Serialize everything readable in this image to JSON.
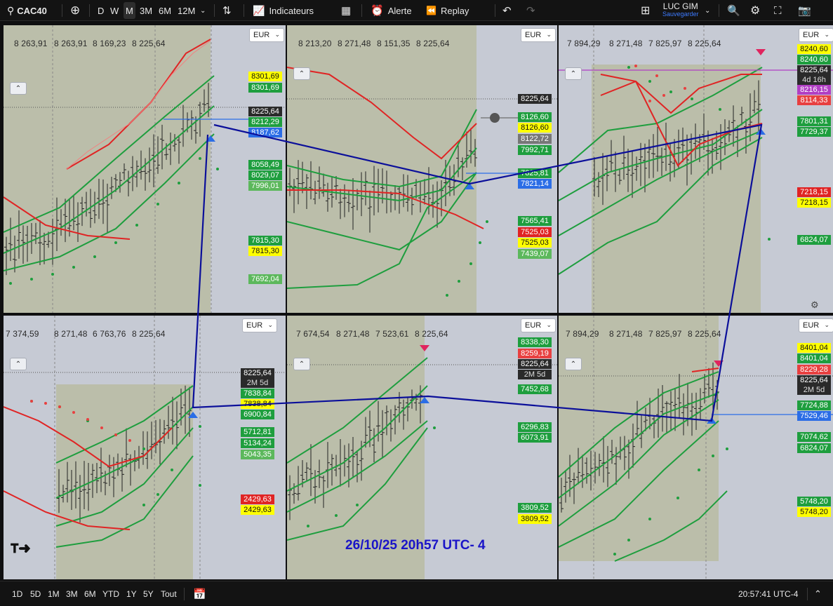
{
  "toolbar": {
    "symbol": "CAC40",
    "intervals": [
      "D",
      "W",
      "M",
      "3M",
      "6M",
      "12M"
    ],
    "active_interval": "M",
    "indicators_label": "Indicateurs",
    "alert_label": "Alerte",
    "replay_label": "Replay",
    "user_name": "LUC GIM",
    "save_label": "Sauvegarder"
  },
  "bottombar": {
    "ranges": [
      "1D",
      "5D",
      "1M",
      "3M",
      "6M",
      "YTD",
      "1Y",
      "5Y",
      "Tout"
    ],
    "clock": "20:57:41 UTC-4"
  },
  "currency": "EUR",
  "watermark": "26/10/25 20h57 UTC- 4",
  "colors": {
    "band": "#1e9e3e",
    "bear": "#e02424",
    "drawing": "#0b0f9a",
    "bg": "#c6cad4"
  },
  "panes": [
    {
      "id": "p1",
      "ohlc": [
        "8 263,91",
        "8 263,91",
        "8 169,23",
        "8 225,64"
      ],
      "labels": [
        {
          "text": "8301,69",
          "bg": "#ffff00",
          "fg": "#111"
        },
        {
          "text": "8301,69",
          "bg": "#1e9e3e",
          "fg": "#fff"
        },
        {
          "text": "8225,64",
          "bg": "#2a2a2a",
          "fg": "#fff"
        },
        {
          "text": "8212,29",
          "bg": "#1e9e3e",
          "fg": "#fff"
        },
        {
          "text": "8187,62",
          "bg": "#2b6de6",
          "fg": "#fff"
        },
        {
          "text": "8058,49",
          "bg": "#1e9e3e",
          "fg": "#fff"
        },
        {
          "text": "8029,07",
          "bg": "#1e9e3e",
          "fg": "#fff"
        },
        {
          "text": "7996,01",
          "bg": "#5cb85c",
          "fg": "#fff"
        },
        {
          "text": "7815,30",
          "bg": "#1e9e3e",
          "fg": "#fff"
        },
        {
          "text": "7815,30",
          "bg": "#ffff00",
          "fg": "#111"
        },
        {
          "text": "7692,04",
          "bg": "#5cb85c",
          "fg": "#fff"
        }
      ]
    },
    {
      "id": "p2",
      "ohlc": [
        "8 213,20",
        "8 271,48",
        "8 151,35",
        "8 225,64"
      ],
      "labels": [
        {
          "text": "8225,64",
          "bg": "#2a2a2a",
          "fg": "#fff"
        },
        {
          "text": "8126,60",
          "bg": "#1e9e3e",
          "fg": "#fff"
        },
        {
          "text": "8126,60",
          "bg": "#ffff00",
          "fg": "#111"
        },
        {
          "text": "8122,72",
          "bg": "#777",
          "fg": "#fff"
        },
        {
          "text": "7992,71",
          "bg": "#1e9e3e",
          "fg": "#fff"
        },
        {
          "text": "7825,81",
          "bg": "#1e9e3e",
          "fg": "#fff"
        },
        {
          "text": "7821,14",
          "bg": "#2b6de6",
          "fg": "#fff"
        },
        {
          "text": "7565,41",
          "bg": "#1e9e3e",
          "fg": "#fff"
        },
        {
          "text": "7525,03",
          "bg": "#e02424",
          "fg": "#fff"
        },
        {
          "text": "7525,03",
          "bg": "#ffff00",
          "fg": "#111"
        },
        {
          "text": "7439,07",
          "bg": "#5cb85c",
          "fg": "#fff"
        }
      ]
    },
    {
      "id": "p3",
      "ohlc": [
        "7 894,29",
        "8 271,48",
        "7 825,97",
        "8 225,64"
      ],
      "labels": [
        {
          "text": "8240,60",
          "bg": "#ffff00",
          "fg": "#111"
        },
        {
          "text": "8240,60",
          "bg": "#1e9e3e",
          "fg": "#fff"
        },
        {
          "text": "8225,64",
          "bg": "#2a2a2a",
          "fg": "#fff"
        },
        {
          "text": "4d 16h",
          "bg": "#2a2a2a",
          "fg": "#ddd"
        },
        {
          "text": "8216,15",
          "bg": "#b13fc4",
          "fg": "#fff"
        },
        {
          "text": "8114,33",
          "bg": "#e84040",
          "fg": "#fff"
        },
        {
          "text": "7801,31",
          "bg": "#1e9e3e",
          "fg": "#fff"
        },
        {
          "text": "7729,37",
          "bg": "#1e9e3e",
          "fg": "#fff"
        },
        {
          "text": "7218,15",
          "bg": "#e02424",
          "fg": "#fff"
        },
        {
          "text": "7218,15",
          "bg": "#ffff00",
          "fg": "#111"
        },
        {
          "text": "6824,07",
          "bg": "#1e9e3e",
          "fg": "#fff"
        }
      ]
    },
    {
      "id": "p4",
      "ohlc": [
        "7 374,59",
        "8 271,48",
        "6 763,76",
        "8 225,64"
      ],
      "labels": [
        {
          "text": "8225,64",
          "bg": "#2a2a2a",
          "fg": "#fff"
        },
        {
          "text": "2M 5d",
          "bg": "#2a2a2a",
          "fg": "#ddd"
        },
        {
          "text": "7838,84",
          "bg": "#1e9e3e",
          "fg": "#fff"
        },
        {
          "text": "7838,84",
          "bg": "#ffff00",
          "fg": "#111"
        },
        {
          "text": "6900,84",
          "bg": "#1e9e3e",
          "fg": "#fff"
        },
        {
          "text": "5712,81",
          "bg": "#1e9e3e",
          "fg": "#fff"
        },
        {
          "text": "5134,24",
          "bg": "#1e9e3e",
          "fg": "#fff"
        },
        {
          "text": "5043,35",
          "bg": "#5cb85c",
          "fg": "#fff"
        },
        {
          "text": "2429,63",
          "bg": "#e02424",
          "fg": "#fff"
        },
        {
          "text": "2429,63",
          "bg": "#ffff00",
          "fg": "#111"
        }
      ]
    },
    {
      "id": "p5",
      "ohlc": [
        "7 674,54",
        "8 271,48",
        "7 523,61",
        "8 225,64"
      ],
      "labels": [
        {
          "text": "8338,30",
          "bg": "#1e9e3e",
          "fg": "#fff"
        },
        {
          "text": "8259,19",
          "bg": "#e84040",
          "fg": "#fff"
        },
        {
          "text": "8225,64",
          "bg": "#2a2a2a",
          "fg": "#fff"
        },
        {
          "text": "2M 5d",
          "bg": "#2a2a2a",
          "fg": "#ddd"
        },
        {
          "text": "7452,68",
          "bg": "#1e9e3e",
          "fg": "#fff"
        },
        {
          "text": "6296,83",
          "bg": "#1e9e3e",
          "fg": "#fff"
        },
        {
          "text": "6073,91",
          "bg": "#1e9e3e",
          "fg": "#fff"
        },
        {
          "text": "3809,52",
          "bg": "#1e9e3e",
          "fg": "#fff"
        },
        {
          "text": "3809,52",
          "bg": "#ffff00",
          "fg": "#111"
        }
      ]
    },
    {
      "id": "p6",
      "ohlc": [
        "7 894,29",
        "8 271,48",
        "7 825,97",
        "8 225,64"
      ],
      "labels": [
        {
          "text": "8401,04",
          "bg": "#ffff00",
          "fg": "#111"
        },
        {
          "text": "8401,04",
          "bg": "#1e9e3e",
          "fg": "#fff"
        },
        {
          "text": "8229,28",
          "bg": "#e84040",
          "fg": "#fff"
        },
        {
          "text": "8225,64",
          "bg": "#2a2a2a",
          "fg": "#fff"
        },
        {
          "text": "2M 5d",
          "bg": "#2a2a2a",
          "fg": "#ddd"
        },
        {
          "text": "7724,88",
          "bg": "#1e9e3e",
          "fg": "#fff"
        },
        {
          "text": "7529,46",
          "bg": "#2b6de6",
          "fg": "#fff"
        },
        {
          "text": "7074,62",
          "bg": "#1e9e3e",
          "fg": "#fff"
        },
        {
          "text": "6824,07",
          "bg": "#1e9e3e",
          "fg": "#fff"
        },
        {
          "text": "5748,20",
          "bg": "#1e9e3e",
          "fg": "#fff"
        },
        {
          "text": "5748,20",
          "bg": "#ffff00",
          "fg": "#111"
        }
      ]
    }
  ]
}
